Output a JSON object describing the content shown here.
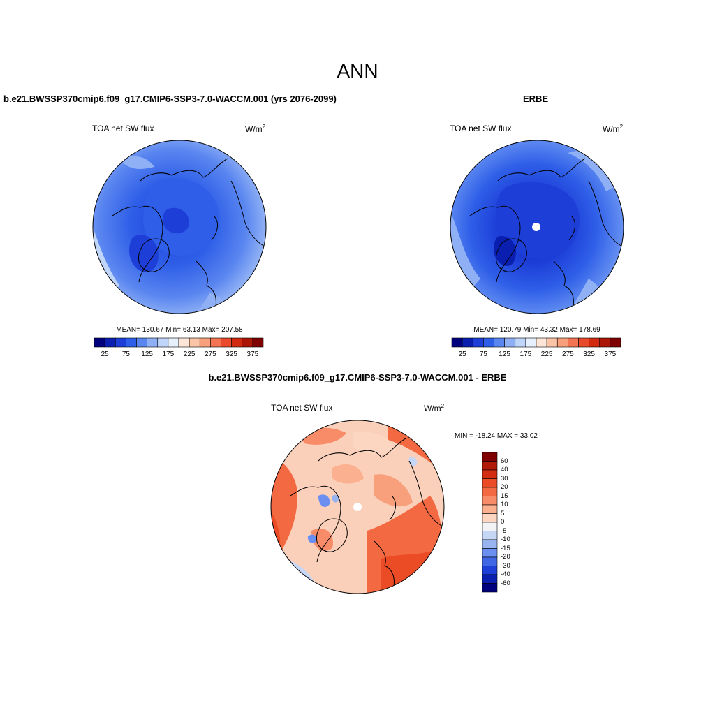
{
  "main_title": "ANN",
  "panels": [
    {
      "title": "b.e21.BWSSP370cmip6.f09_g17.CMIP6-SSP3-7.0-WACCM.001 (yrs 2076-2099)",
      "variable": "TOA net SW flux",
      "unit_base": "W/m",
      "unit_exp": "2",
      "stats": "MEAN= 130.67  Min=  63.13  Max= 207.58",
      "has_missing_pole": false
    },
    {
      "title": "ERBE",
      "variable": "TOA net SW flux",
      "unit_base": "W/m",
      "unit_exp": "2",
      "stats": "MEAN= 120.79  Min=  43.32  Max= 178.69",
      "has_missing_pole": true
    },
    {
      "title": "b.e21.BWSSP370cmip6.f09_g17.CMIP6-SSP3-7.0-WACCM.001 - ERBE",
      "variable": "TOA net SW flux",
      "unit_base": "W/m",
      "unit_exp": "2",
      "stats": "MIN = -18.24 MAX =  33.02",
      "has_missing_pole": true
    }
  ],
  "colorbar_field": {
    "ticks": [
      "25",
      "75",
      "125",
      "175",
      "225",
      "275",
      "325",
      "375"
    ],
    "colors": [
      "#00007f",
      "#0a1fb0",
      "#1d3fd8",
      "#2f5fe8",
      "#5a86f0",
      "#8fb0f5",
      "#c0d5fa",
      "#e6f0fd",
      "#fde6d8",
      "#fbc4a6",
      "#f8a07c",
      "#f37452",
      "#e94a2b",
      "#d22a10",
      "#ac1606",
      "#7f0000"
    ]
  },
  "colorbar_diff": {
    "labels": [
      "60",
      "40",
      "30",
      "20",
      "15",
      "10",
      "5",
      "0",
      "-5",
      "-10",
      "-15",
      "-20",
      "-30",
      "-40",
      "-60"
    ],
    "colors": [
      "#7f0000",
      "#b11a06",
      "#d42c10",
      "#eb4b25",
      "#f36a42",
      "#f88c68",
      "#fbb08f",
      "#fdd6c2",
      "#f3f3f5",
      "#c6d7f6",
      "#97b4f0",
      "#6a8ff0",
      "#3f66e5",
      "#1d3fd8",
      "#0a1fb0",
      "#00007f"
    ]
  }
}
